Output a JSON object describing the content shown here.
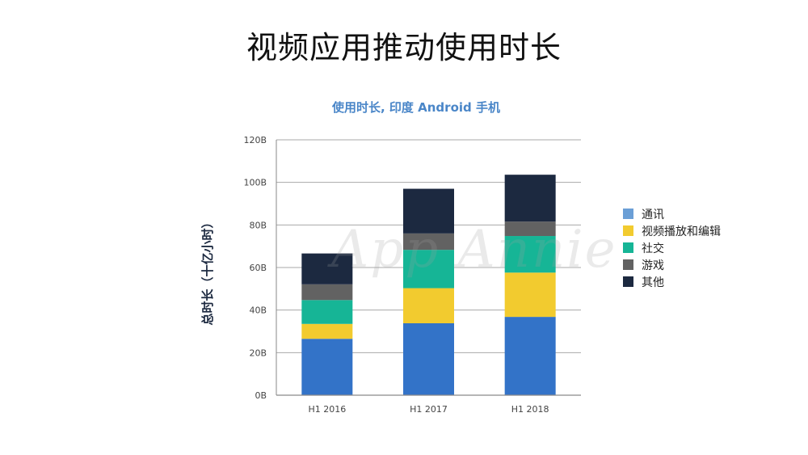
{
  "slide": {
    "title": "视频应用推动使用时长"
  },
  "watermark": "App Annie",
  "chart_data": {
    "type": "bar",
    "stacked": true,
    "title": "使用时长, 印度 Android 手机",
    "xlabel": "",
    "ylabel": "总时长（十亿小时）",
    "ylim": [
      0,
      120
    ],
    "yticks": [
      0,
      20,
      40,
      60,
      80,
      100,
      120
    ],
    "ytick_labels": [
      "0B",
      "20B",
      "40B",
      "60B",
      "80B",
      "100B",
      "120B"
    ],
    "categories": [
      "H1 2016",
      "H1 2017",
      "H1 2018"
    ],
    "grid": true,
    "legend_position": "right",
    "series": [
      {
        "name": "通讯",
        "color": "#3373c8",
        "legend_color": "#6b9fd6",
        "values": [
          26.5,
          33.8,
          36.8
        ]
      },
      {
        "name": "视频播放和编辑",
        "color": "#f2cb2f",
        "values": [
          7.0,
          16.5,
          20.8
        ]
      },
      {
        "name": "社交",
        "color": "#16b596",
        "values": [
          11.2,
          18.0,
          17.2
        ]
      },
      {
        "name": "游戏",
        "color": "#626262",
        "values": [
          7.4,
          7.7,
          6.8
        ]
      },
      {
        "name": "其他",
        "color": "#1c2940",
        "values": [
          14.5,
          21.0,
          22.0
        ]
      }
    ]
  }
}
